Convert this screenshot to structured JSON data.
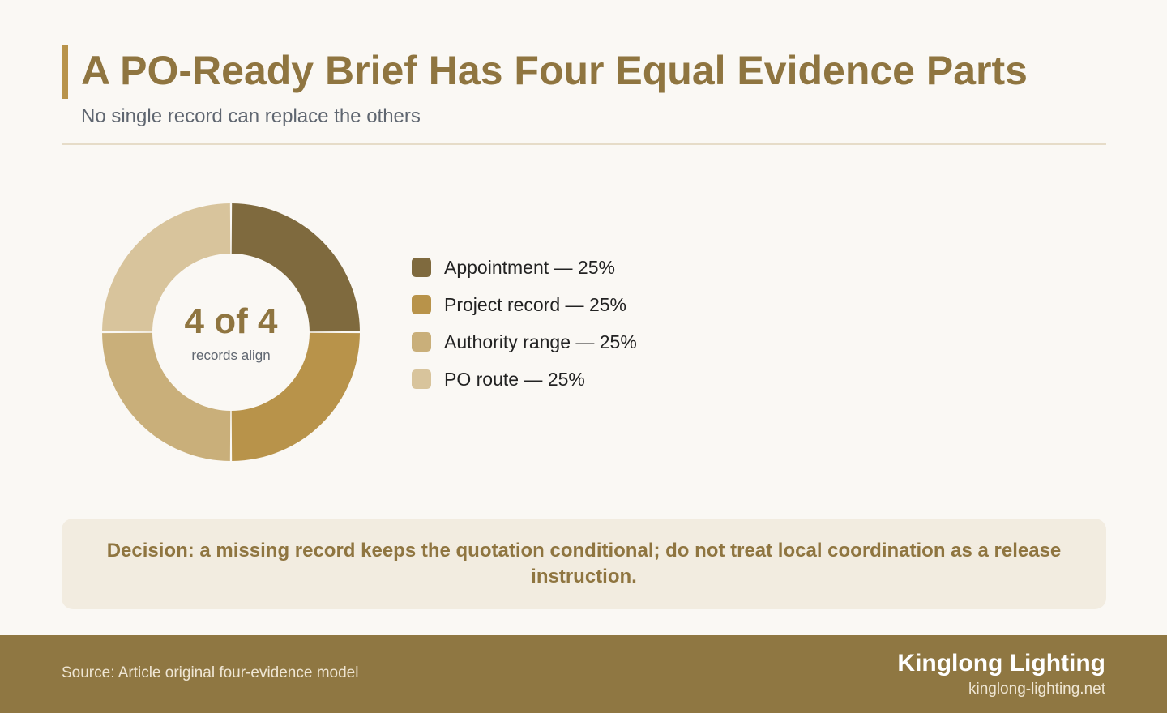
{
  "header": {
    "title": "A PO-Ready Brief Has Four Equal Evidence Parts",
    "subtitle": "No single record can replace the others"
  },
  "chart_data": {
    "type": "pie",
    "variant": "donut",
    "center_value": "4 of 4",
    "center_label": "records align",
    "slices": [
      {
        "label": "Appointment — 25%",
        "name": "Appointment",
        "value": 25,
        "color": "#7f6a3e"
      },
      {
        "label": "Project record — 25%",
        "name": "Project record",
        "value": 25,
        "color": "#b8934a"
      },
      {
        "label": "Authority range — 25%",
        "name": "Authority range",
        "value": 25,
        "color": "#c9af7a"
      },
      {
        "label": "PO route — 25%",
        "name": "PO route",
        "value": 25,
        "color": "#d8c49c"
      }
    ],
    "legend_position": "right"
  },
  "decision": {
    "text": "Decision: a missing record keeps the quotation conditional; do not treat local coordination as a release instruction."
  },
  "footer": {
    "source": "Source: Article original four-evidence model",
    "brand": "Kinglong Lighting",
    "url": "kinglong-lighting.net"
  },
  "colors": {
    "accent": "#b8934a",
    "title": "#8f7540",
    "footer_bg": "#8f7742",
    "background": "#faf8f4"
  }
}
